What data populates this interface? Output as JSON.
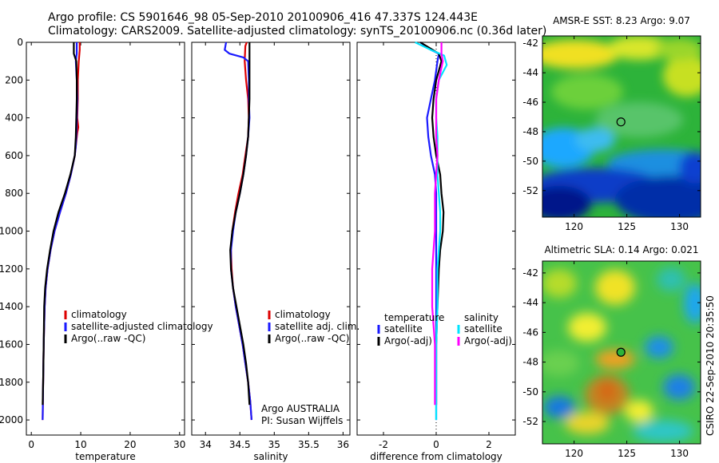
{
  "header": {
    "line1": "Argo profile: CS 5901646_98 05-Sep-2010 20100906_416 47.337S 124.443E",
    "line2": "Climatology: CARS2009. Satellite-adjusted climatology: synTS_20100906.nc (0.36d later)"
  },
  "footer_vertical": "CSIRO 22-Sep-2010 20:35:50",
  "colors": {
    "climatology": "#dd0000",
    "satellite": "#1a1aff",
    "argo": "#000000",
    "satellite_sal": "#00e5ff",
    "argo_sal": "#ff00ff"
  },
  "chart_data": [
    {
      "type": "line",
      "id": "temperature",
      "xlabel": "temperature",
      "ylabel": "",
      "xlim": [
        -1,
        31
      ],
      "ylim": [
        0,
        2080
      ],
      "y_reversed": true,
      "x_ticks": [
        0,
        10,
        20,
        30
      ],
      "y_ticks": [
        0,
        200,
        400,
        600,
        800,
        1000,
        1200,
        1400,
        1600,
        1800,
        2000
      ],
      "legend": [
        "climatology",
        "satellite-adjusted climatology",
        "Argo(..raw -QC)"
      ],
      "series": [
        {
          "name": "climatology",
          "color_key": "climatology",
          "points": [
            [
              9.8,
              0
            ],
            [
              9.8,
              40
            ],
            [
              9.6,
              100
            ],
            [
              9.4,
              200
            ],
            [
              9.4,
              300
            ],
            [
              9.3,
              400
            ],
            [
              9.5,
              450
            ],
            [
              9.3,
              480
            ],
            [
              9.0,
              550
            ],
            [
              8.8,
              600
            ],
            [
              8.0,
              700
            ],
            [
              7.0,
              800
            ],
            [
              5.8,
              900
            ],
            [
              4.7,
              1000
            ],
            [
              3.9,
              1100
            ],
            [
              3.3,
              1200
            ],
            [
              2.9,
              1300
            ],
            [
              2.7,
              1400
            ],
            [
              2.6,
              1500
            ],
            [
              2.5,
              1600
            ],
            [
              2.4,
              1800
            ],
            [
              2.3,
              2000
            ]
          ]
        },
        {
          "name": "satellite-adjusted climatology",
          "color_key": "satellite",
          "points": [
            [
              9.2,
              0
            ],
            [
              9.2,
              60
            ],
            [
              9.0,
              100
            ],
            [
              9.2,
              200
            ],
            [
              9.3,
              300
            ],
            [
              9.2,
              400
            ],
            [
              9.1,
              500
            ],
            [
              9.0,
              550
            ],
            [
              8.8,
              600
            ],
            [
              8.0,
              700
            ],
            [
              7.0,
              800
            ],
            [
              5.8,
              900
            ],
            [
              4.7,
              1000
            ],
            [
              3.9,
              1100
            ],
            [
              3.3,
              1200
            ],
            [
              2.9,
              1300
            ],
            [
              2.7,
              1400
            ],
            [
              2.6,
              1500
            ],
            [
              2.5,
              1600
            ],
            [
              2.4,
              1800
            ],
            [
              2.3,
              2000
            ]
          ]
        },
        {
          "name": "Argo(..raw -QC)",
          "color_key": "argo",
          "points": [
            [
              8.6,
              0
            ],
            [
              8.6,
              60
            ],
            [
              9.1,
              100
            ],
            [
              9.2,
              200
            ],
            [
              9.2,
              300
            ],
            [
              9.1,
              400
            ],
            [
              9.0,
              500
            ],
            [
              8.8,
              600
            ],
            [
              7.9,
              700
            ],
            [
              6.8,
              800
            ],
            [
              5.5,
              900
            ],
            [
              4.5,
              1000
            ],
            [
              3.8,
              1100
            ],
            [
              3.2,
              1200
            ],
            [
              2.8,
              1300
            ],
            [
              2.6,
              1400
            ],
            [
              2.5,
              1600
            ],
            [
              2.4,
              1800
            ],
            [
              2.3,
              1920
            ]
          ]
        }
      ]
    },
    {
      "type": "line",
      "id": "salinity",
      "xlabel": "salinity",
      "ylabel": "",
      "xlim": [
        33.8,
        36.1
      ],
      "ylim": [
        0,
        2080
      ],
      "y_reversed": true,
      "x_ticks": [
        34,
        34.5,
        35,
        35.5,
        36
      ],
      "y_ticks": [
        0,
        200,
        400,
        600,
        800,
        1000,
        1200,
        1400,
        1600,
        1800,
        2000
      ],
      "legend": [
        "climatology",
        "satellite adj. clim.",
        "Argo(..raw -QC)"
      ],
      "annotation": [
        "Argo AUSTRALIA",
        "PI: Susan Wijffels"
      ],
      "series": [
        {
          "name": "climatology",
          "color_key": "climatology",
          "points": [
            [
              34.6,
              0
            ],
            [
              34.58,
              20
            ],
            [
              34.57,
              100
            ],
            [
              34.59,
              200
            ],
            [
              34.62,
              300
            ],
            [
              34.63,
              400
            ],
            [
              34.62,
              500
            ],
            [
              34.58,
              600
            ],
            [
              34.54,
              700
            ],
            [
              34.48,
              800
            ],
            [
              34.43,
              900
            ],
            [
              34.39,
              1000
            ],
            [
              34.37,
              1100
            ],
            [
              34.38,
              1200
            ],
            [
              34.4,
              1300
            ],
            [
              34.44,
              1400
            ],
            [
              34.49,
              1500
            ],
            [
              34.54,
              1600
            ],
            [
              34.58,
              1700
            ],
            [
              34.62,
              1800
            ],
            [
              34.65,
              1900
            ],
            [
              34.67,
              2000
            ]
          ]
        },
        {
          "name": "satellite adj. clim.",
          "color_key": "satellite",
          "points": [
            [
              34.3,
              0
            ],
            [
              34.28,
              40
            ],
            [
              34.35,
              60
            ],
            [
              34.55,
              80
            ],
            [
              34.62,
              100
            ],
            [
              34.63,
              200
            ],
            [
              34.63,
              300
            ],
            [
              34.64,
              400
            ],
            [
              34.62,
              500
            ],
            [
              34.59,
              600
            ],
            [
              34.55,
              700
            ],
            [
              34.5,
              800
            ],
            [
              34.44,
              900
            ],
            [
              34.4,
              1000
            ],
            [
              34.37,
              1100
            ],
            [
              34.37,
              1200
            ],
            [
              34.4,
              1300
            ],
            [
              34.44,
              1400
            ],
            [
              34.49,
              1500
            ],
            [
              34.54,
              1600
            ],
            [
              34.58,
              1700
            ],
            [
              34.62,
              1800
            ],
            [
              34.65,
              1900
            ],
            [
              34.67,
              2000
            ]
          ]
        },
        {
          "name": "Argo(..raw -QC)",
          "color_key": "argo",
          "points": [
            [
              34.64,
              0
            ],
            [
              34.64,
              100
            ],
            [
              34.64,
              200
            ],
            [
              34.64,
              300
            ],
            [
              34.63,
              400
            ],
            [
              34.62,
              500
            ],
            [
              34.59,
              600
            ],
            [
              34.55,
              700
            ],
            [
              34.5,
              800
            ],
            [
              34.44,
              900
            ],
            [
              34.39,
              1000
            ],
            [
              34.36,
              1100
            ],
            [
              34.37,
              1200
            ],
            [
              34.4,
              1300
            ],
            [
              34.45,
              1400
            ],
            [
              34.5,
              1500
            ],
            [
              34.55,
              1600
            ],
            [
              34.59,
              1700
            ],
            [
              34.62,
              1800
            ],
            [
              34.64,
              1920
            ]
          ]
        }
      ]
    },
    {
      "type": "line",
      "id": "difference",
      "xlabel": "difference from climatology",
      "ylabel": "",
      "xlim": [
        -3,
        3
      ],
      "ylim": [
        0,
        2080
      ],
      "y_reversed": true,
      "x_ticks": [
        -2,
        0,
        2
      ],
      "y_ticks": [
        0,
        200,
        400,
        600,
        800,
        1000,
        1200,
        1400,
        1600,
        1800,
        2000
      ],
      "legend_groups": [
        {
          "title": "temperature",
          "items": [
            "satellite",
            "Argo(-adj)"
          ]
        },
        {
          "title": "salinity",
          "items": [
            "satellite",
            "Argo(-adj)"
          ]
        }
      ],
      "series": [
        {
          "name": "temperature satellite",
          "color_key": "satellite",
          "points": [
            [
              -0.6,
              0
            ],
            [
              -0.2,
              40
            ],
            [
              0.1,
              60
            ],
            [
              0.05,
              100
            ],
            [
              -0.05,
              200
            ],
            [
              -0.2,
              300
            ],
            [
              -0.35,
              400
            ],
            [
              -0.3,
              500
            ],
            [
              -0.2,
              600
            ],
            [
              -0.05,
              700
            ],
            [
              0.0,
              800
            ],
            [
              0.0,
              900
            ],
            [
              0.0,
              1000
            ],
            [
              0.0,
              1200
            ],
            [
              0.0,
              1400
            ],
            [
              0.0,
              1600
            ],
            [
              0.0,
              1800
            ],
            [
              0.0,
              2000
            ]
          ]
        },
        {
          "name": "temperature Argo(-adj)",
          "color_key": "argo",
          "points": [
            [
              -0.6,
              0
            ],
            [
              0.1,
              60
            ],
            [
              0.2,
              100
            ],
            [
              0.0,
              200
            ],
            [
              -0.1,
              300
            ],
            [
              -0.15,
              400
            ],
            [
              -0.1,
              500
            ],
            [
              0.0,
              600
            ],
            [
              0.15,
              700
            ],
            [
              0.2,
              800
            ],
            [
              0.28,
              900
            ],
            [
              0.25,
              1000
            ],
            [
              0.15,
              1100
            ],
            [
              0.1,
              1200
            ],
            [
              0.05,
              1400
            ],
            [
              0.0,
              1600
            ],
            [
              0.0,
              1800
            ],
            [
              0.0,
              1920
            ]
          ]
        },
        {
          "name": "salinity satellite",
          "color_key": "satellite_sal",
          "points": [
            [
              -0.8,
              0
            ],
            [
              -0.2,
              40
            ],
            [
              0.3,
              70
            ],
            [
              0.4,
              120
            ],
            [
              0.1,
              200
            ],
            [
              0.0,
              300
            ],
            [
              0.0,
              400
            ],
            [
              0.05,
              500
            ],
            [
              0.05,
              600
            ],
            [
              0.05,
              700
            ],
            [
              0.1,
              800
            ],
            [
              0.15,
              900
            ],
            [
              0.15,
              1000
            ],
            [
              0.1,
              1100
            ],
            [
              0.05,
              1200
            ],
            [
              0.05,
              1400
            ],
            [
              0.0,
              1600
            ],
            [
              0.0,
              1800
            ],
            [
              0.0,
              2000
            ]
          ]
        },
        {
          "name": "salinity Argo(-adj)",
          "color_key": "argo_sal",
          "points": [
            [
              0.2,
              0
            ],
            [
              0.2,
              60
            ],
            [
              0.25,
              100
            ],
            [
              0.1,
              200
            ],
            [
              0.0,
              300
            ],
            [
              0.0,
              400
            ],
            [
              0.0,
              500
            ],
            [
              0.05,
              600
            ],
            [
              0.0,
              700
            ],
            [
              -0.05,
              800
            ],
            [
              -0.05,
              900
            ],
            [
              -0.05,
              1000
            ],
            [
              -0.1,
              1100
            ],
            [
              -0.15,
              1200
            ],
            [
              -0.15,
              1300
            ],
            [
              -0.15,
              1400
            ],
            [
              -0.1,
              1500
            ],
            [
              -0.05,
              1600
            ],
            [
              -0.05,
              1700
            ],
            [
              -0.05,
              1800
            ],
            [
              -0.05,
              1920
            ]
          ]
        }
      ]
    },
    {
      "type": "heatmap",
      "id": "sst_map",
      "title": "AMSR-E SST: 8.23 Argo: 9.07",
      "xlim": [
        117,
        132
      ],
      "ylim": [
        -53.8,
        -41.5
      ],
      "x_ticks": [
        120,
        125,
        130
      ],
      "y_ticks": [
        -42,
        -44,
        -46,
        -48,
        -50,
        -52
      ],
      "marker": {
        "lon": 124.443,
        "lat": -47.337,
        "filled": false
      }
    },
    {
      "type": "heatmap",
      "id": "sla_map",
      "title": "Altimetric SLA: 0.14 Argo: 0.021",
      "xlim": [
        117,
        132
      ],
      "ylim": [
        -53.5,
        -41.2
      ],
      "x_ticks": [
        120,
        125,
        130
      ],
      "y_ticks": [
        -42,
        -44,
        -46,
        -48,
        -50,
        -52
      ],
      "marker": {
        "lon": 124.443,
        "lat": -47.337,
        "filled": true
      }
    }
  ]
}
